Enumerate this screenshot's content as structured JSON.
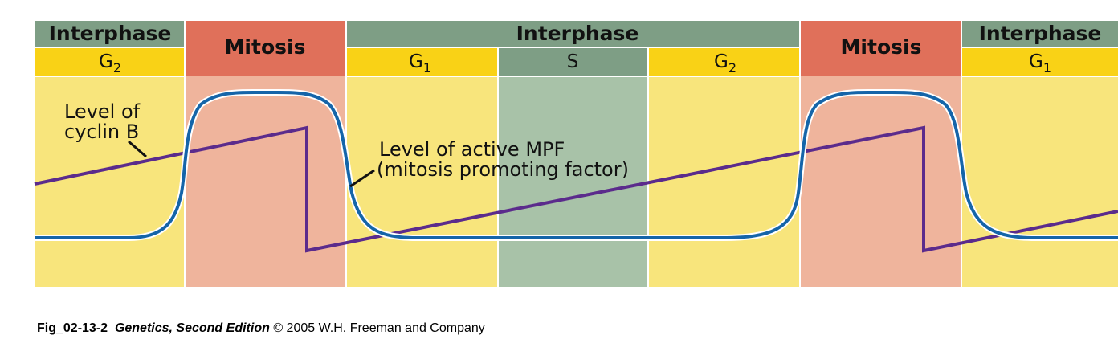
{
  "header_phases": [
    {
      "label": "Interphase"
    },
    {
      "label": "Mitosis"
    },
    {
      "label": "Interphase"
    },
    {
      "label": "Mitosis"
    },
    {
      "label": "Interphase"
    }
  ],
  "subphases": [
    {
      "base": "G",
      "sub": "2"
    },
    {
      "base": "G",
      "sub": "1"
    },
    {
      "base": "S",
      "sub": ""
    },
    {
      "base": "G",
      "sub": "2"
    },
    {
      "base": "G",
      "sub": "1"
    }
  ],
  "labels": {
    "cyclin_line1": "Level of",
    "cyclin_line2": "cyclin B",
    "mpf_line1": "Level of active MPF",
    "mpf_line2": "(mitosis promoting factor)"
  },
  "colors": {
    "interphase_header": "#7e9e85",
    "mitosis_header": "#e0705a",
    "g_phase_band": "#f9d216",
    "g_phase_body": "#f8e57c",
    "s_phase": "#7e9e85",
    "s_phase_body": "#a8c2a8",
    "mitosis_body": "#efb49c",
    "cyclin_b_line": "#5b2b8c",
    "mpf_line": "#1565a9"
  },
  "caption": {
    "fig": "Fig_02-13-2",
    "book": "Genetics, Second Edition",
    "rest": "© 2005 W.H. Freeman and Company"
  }
}
